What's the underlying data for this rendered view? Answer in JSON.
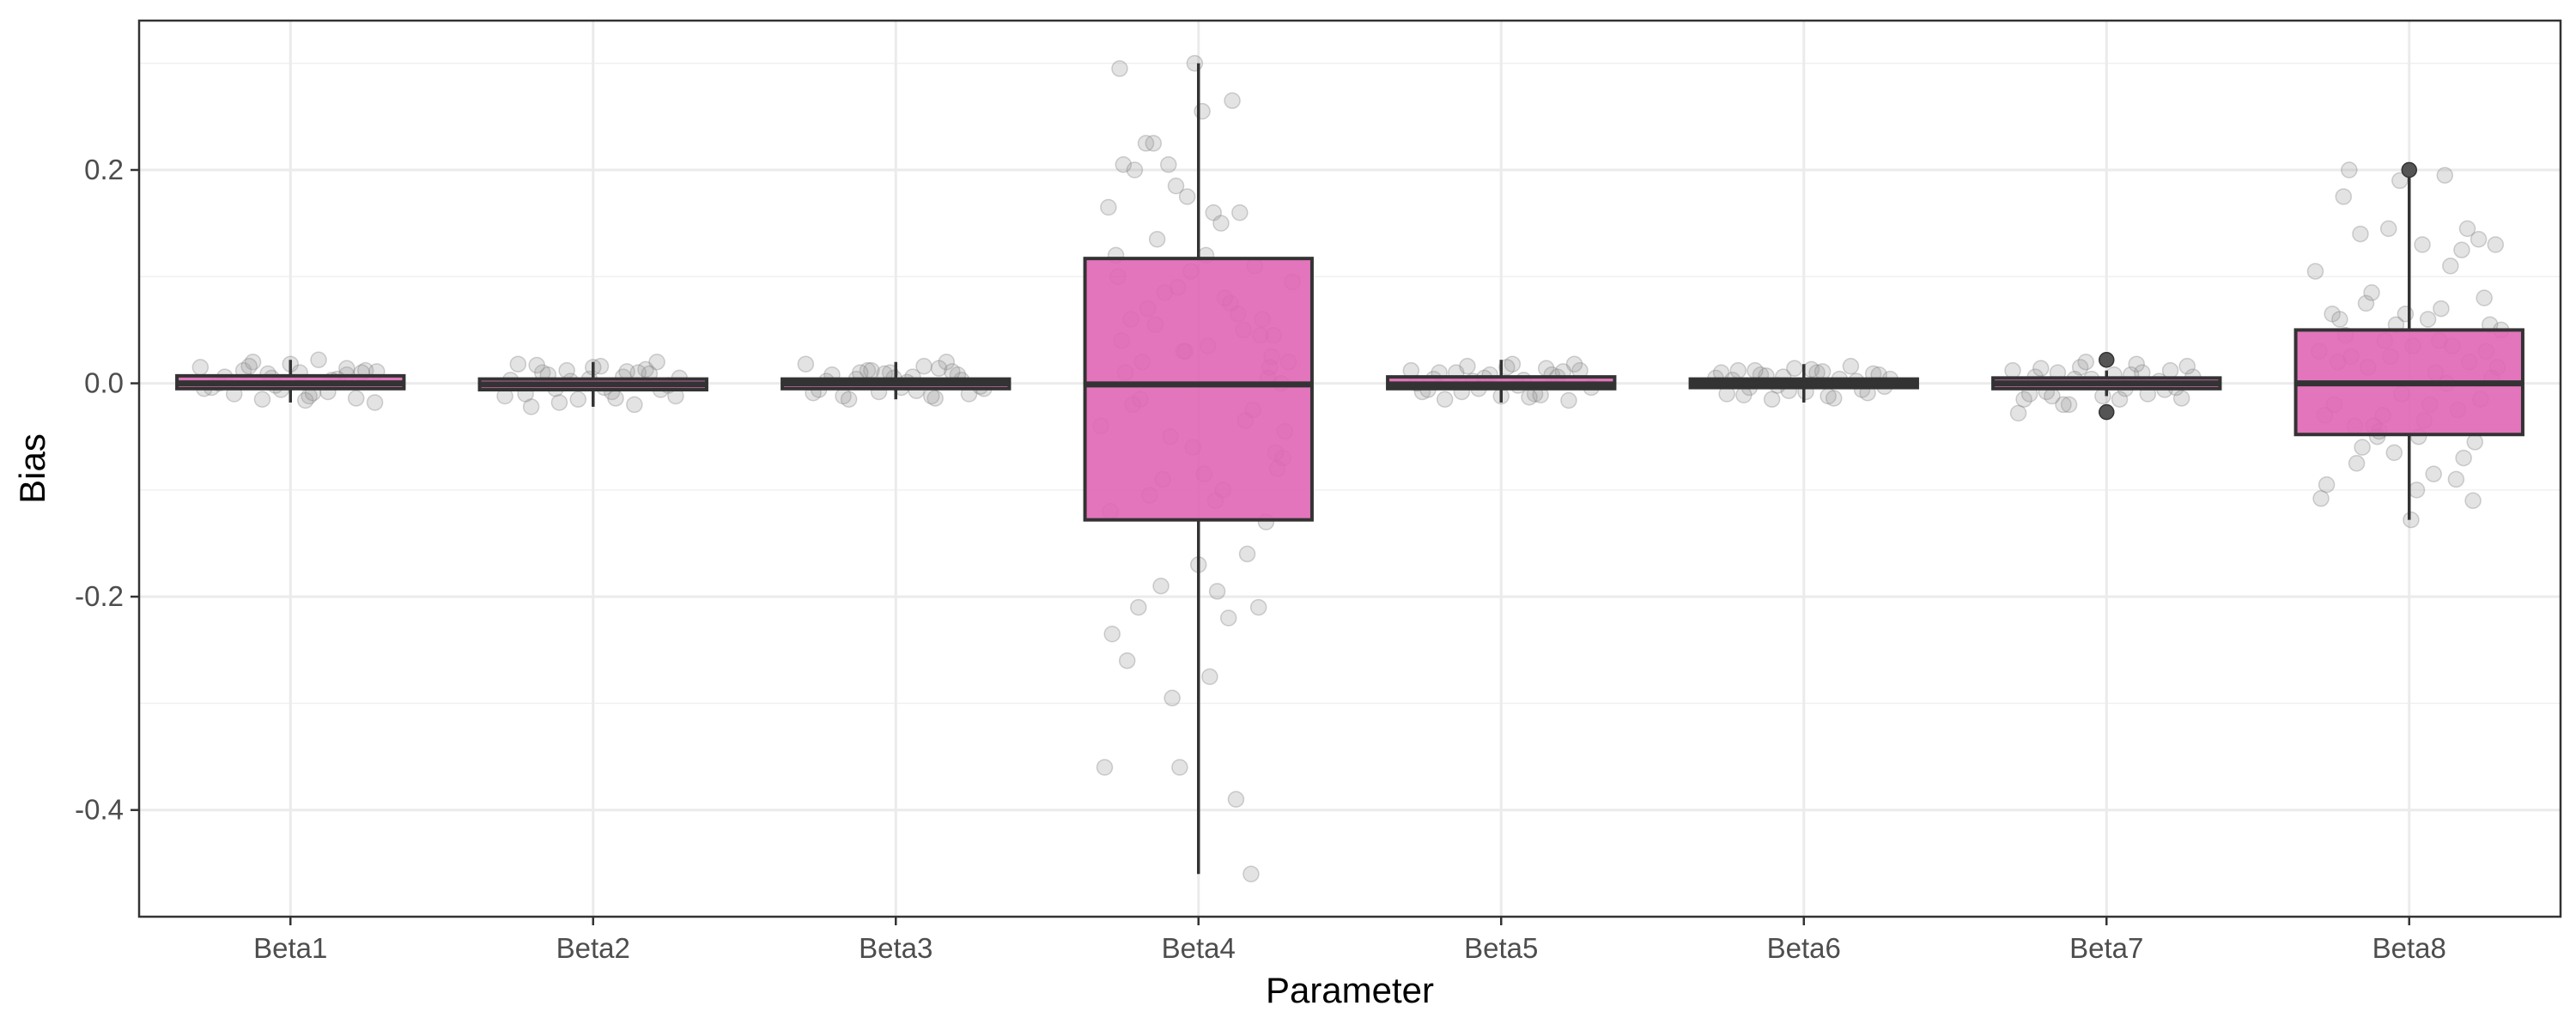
{
  "chart_data": {
    "type": "boxplot",
    "title": "",
    "xlabel": "Parameter",
    "ylabel": "Bias",
    "ylim": [
      -0.5,
      0.34
    ],
    "yticks": [
      {
        "value": -0.4,
        "label": "-0.4"
      },
      {
        "value": -0.2,
        "label": "-0.2"
      },
      {
        "value": 0.0,
        "label": "0.0"
      },
      {
        "value": 0.2,
        "label": "0.2"
      }
    ],
    "grid": true,
    "legend": "none",
    "colors": {
      "box_fill": "#e066b5",
      "box_line": "#333333",
      "point": "#999999"
    },
    "categories": [
      "Beta1",
      "Beta2",
      "Beta3",
      "Beta4",
      "Beta5",
      "Beta6",
      "Beta7",
      "Beta8"
    ],
    "boxes": [
      {
        "category": "Beta1",
        "min": -0.018,
        "q1": -0.005,
        "median": 0.0,
        "q3": 0.007,
        "max": 0.022,
        "outliers": []
      },
      {
        "category": "Beta2",
        "min": -0.022,
        "q1": -0.006,
        "median": -0.001,
        "q3": 0.004,
        "max": 0.02,
        "outliers": []
      },
      {
        "category": "Beta3",
        "min": -0.015,
        "q1": -0.005,
        "median": 0.0,
        "q3": 0.004,
        "max": 0.02,
        "outliers": []
      },
      {
        "category": "Beta4",
        "min": -0.46,
        "q1": -0.128,
        "median": -0.001,
        "q3": 0.117,
        "max": 0.3,
        "outliers": []
      },
      {
        "category": "Beta5",
        "min": -0.018,
        "q1": -0.005,
        "median": -0.001,
        "q3": 0.006,
        "max": 0.022,
        "outliers": []
      },
      {
        "category": "Beta6",
        "min": -0.018,
        "q1": -0.004,
        "median": 0.0,
        "q3": 0.004,
        "max": 0.018,
        "outliers": []
      },
      {
        "category": "Beta7",
        "min": -0.012,
        "q1": -0.005,
        "median": 0.0,
        "q3": 0.005,
        "max": 0.012,
        "outliers": [
          0.022,
          -0.027
        ]
      },
      {
        "category": "Beta8",
        "min": -0.128,
        "q1": -0.048,
        "median": 0.0,
        "q3": 0.05,
        "max": 0.195,
        "outliers": [
          0.2
        ]
      }
    ],
    "jitter_points": [
      {
        "category": "Beta1",
        "offsets": [
          -0.48,
          -0.42,
          -0.35,
          -0.3,
          -0.25,
          -0.2,
          -0.15,
          -0.1,
          -0.05,
          0.0,
          0.05,
          0.1,
          0.15,
          0.2,
          0.25,
          0.3,
          0.35,
          0.4,
          0.45,
          -0.38,
          -0.22,
          -0.08,
          0.08,
          0.22,
          0.38,
          -0.46,
          0.46,
          -0.12,
          0.12,
          0.3
        ],
        "values": [
          0.015,
          -0.004,
          0.006,
          -0.01,
          0.012,
          0.02,
          -0.015,
          0.005,
          -0.006,
          0.018,
          0.01,
          -0.012,
          0.022,
          -0.008,
          0.004,
          0.008,
          -0.014,
          0.012,
          -0.018,
          0.0,
          0.016,
          -0.002,
          -0.016,
          0.003,
          0.01,
          -0.005,
          0.011,
          0.009,
          -0.009,
          0.014
        ]
      },
      {
        "category": "Beta2",
        "offsets": [
          -0.47,
          -0.4,
          -0.33,
          -0.27,
          -0.2,
          -0.14,
          -0.08,
          -0.02,
          0.04,
          0.1,
          0.16,
          0.22,
          0.28,
          0.34,
          0.4,
          0.46,
          -0.36,
          -0.24,
          -0.12,
          0.0,
          0.12,
          0.24,
          0.36,
          -0.44,
          0.44,
          -0.3,
          0.3,
          -0.18,
          0.18,
          0.06
        ],
        "values": [
          -0.012,
          0.018,
          -0.022,
          0.01,
          -0.005,
          0.012,
          -0.015,
          0.004,
          0.016,
          -0.008,
          0.006,
          -0.02,
          0.013,
          0.02,
          -0.002,
          0.005,
          -0.01,
          0.008,
          0.002,
          0.015,
          -0.014,
          0.01,
          -0.006,
          0.003,
          -0.012,
          0.017,
          0.009,
          -0.018,
          0.011,
          -0.004
        ]
      },
      {
        "category": "Beta3",
        "offsets": [
          -0.48,
          -0.41,
          -0.34,
          -0.28,
          -0.21,
          -0.15,
          -0.09,
          -0.03,
          0.03,
          0.09,
          0.15,
          0.21,
          0.27,
          0.33,
          0.39,
          0.45,
          -0.37,
          -0.25,
          -0.13,
          -0.01,
          0.11,
          0.23,
          0.35,
          -0.44,
          0.47,
          -0.19,
          0.19,
          -0.06,
          0.06,
          0.3
        ],
        "values": [
          0.018,
          -0.006,
          0.008,
          -0.012,
          0.004,
          0.012,
          -0.008,
          0.01,
          -0.004,
          0.006,
          0.016,
          -0.014,
          0.02,
          0.008,
          -0.01,
          -0.003,
          0.002,
          -0.015,
          0.012,
          0.005,
          -0.007,
          0.014,
          0.003,
          -0.009,
          -0.005,
          0.01,
          -0.012,
          0.009,
          0.001,
          0.011
        ]
      },
      {
        "category": "Beta4",
        "offsets": [
          -0.52,
          -0.5,
          -0.48,
          -0.46,
          -0.44,
          -0.42,
          -0.4,
          -0.38,
          -0.36,
          -0.34,
          -0.32,
          -0.3,
          -0.28,
          -0.26,
          -0.24,
          -0.22,
          -0.2,
          -0.18,
          -0.16,
          -0.14,
          -0.12,
          -0.1,
          -0.08,
          -0.06,
          -0.04,
          -0.02,
          0.0,
          0.02,
          0.04,
          0.06,
          0.08,
          0.1,
          0.12,
          0.14,
          0.16,
          0.18,
          0.2,
          0.22,
          0.24,
          0.26,
          0.28,
          0.3,
          0.32,
          0.34,
          0.36,
          0.38,
          0.4,
          0.42,
          0.44,
          0.46,
          0.48,
          0.5,
          -0.47,
          -0.41,
          -0.35,
          -0.27,
          -0.19,
          -0.11,
          -0.03,
          0.05,
          0.13,
          0.21,
          0.29,
          0.37,
          0.45,
          -0.43,
          -0.31,
          -0.23,
          -0.15,
          -0.07,
          0.09,
          0.17,
          0.25,
          0.33,
          0.41,
          -0.39,
          0.03,
          0.39
        ],
        "values": [
          -0.04,
          -0.36,
          0.165,
          -0.235,
          0.12,
          0.295,
          0.205,
          -0.26,
          0.06,
          0.2,
          -0.21,
          0.02,
          0.225,
          -0.105,
          0.225,
          0.135,
          -0.19,
          0.085,
          0.205,
          -0.295,
          0.185,
          -0.36,
          0.03,
          0.175,
          0.105,
          0.3,
          -0.17,
          0.255,
          0.12,
          -0.275,
          0.16,
          -0.195,
          0.15,
          0.08,
          -0.22,
          0.265,
          -0.39,
          0.16,
          0.05,
          -0.16,
          -0.46,
          0.11,
          -0.21,
          0.06,
          -0.13,
          0.015,
          0.045,
          -0.08,
          0.0,
          -0.045,
          0.02,
          0.095,
          -0.12,
          0.04,
          -0.02,
          0.07,
          -0.09,
          0.09,
          -0.06,
          0.035,
          -0.1,
          0.065,
          -0.025,
          0.005,
          -0.07,
          0.1,
          -0.015,
          0.055,
          -0.05,
          0.03,
          -0.11,
          0.075,
          -0.035,
          0.045,
          -0.065,
          0.01,
          -0.085,
          0.025
        ]
      },
      {
        "category": "Beta5",
        "offsets": [
          -0.48,
          -0.42,
          -0.36,
          -0.3,
          -0.24,
          -0.18,
          -0.12,
          -0.06,
          0.0,
          0.06,
          0.12,
          0.18,
          0.24,
          0.3,
          0.36,
          0.42,
          0.48,
          -0.45,
          -0.33,
          -0.21,
          -0.09,
          0.03,
          0.15,
          0.27,
          0.39,
          -0.39,
          0.09,
          0.33,
          -0.15,
          0.21
        ],
        "values": [
          0.012,
          -0.008,
          0.004,
          -0.015,
          0.01,
          0.016,
          -0.005,
          0.008,
          -0.012,
          0.018,
          0.003,
          -0.01,
          0.014,
          0.006,
          -0.016,
          0.012,
          -0.004,
          0.0,
          0.01,
          -0.008,
          0.005,
          0.015,
          -0.013,
          0.008,
          0.018,
          -0.006,
          -0.002,
          0.011,
          0.002,
          -0.011
        ]
      },
      {
        "category": "Beta6",
        "offsets": [
          -0.47,
          -0.41,
          -0.35,
          -0.29,
          -0.23,
          -0.17,
          -0.11,
          -0.05,
          0.01,
          0.07,
          0.13,
          0.19,
          0.25,
          0.31,
          0.37,
          0.43,
          -0.44,
          -0.32,
          -0.2,
          -0.08,
          0.04,
          0.16,
          0.28,
          0.4,
          -0.38,
          -0.14,
          0.1,
          0.34,
          0.46,
          -0.26
        ],
        "values": [
          0.005,
          -0.01,
          0.012,
          -0.004,
          0.008,
          -0.015,
          0.006,
          0.014,
          -0.008,
          0.01,
          -0.012,
          0.004,
          0.016,
          -0.006,
          0.009,
          -0.003,
          0.01,
          -0.011,
          0.007,
          -0.007,
          0.013,
          -0.014,
          0.002,
          0.008,
          0.003,
          -0.002,
          0.011,
          -0.009,
          0.004,
          0.012
        ]
      },
      {
        "category": "Beta7",
        "offsets": [
          -0.5,
          -0.44,
          -0.38,
          -0.32,
          -0.26,
          -0.2,
          -0.14,
          -0.08,
          -0.02,
          0.04,
          0.1,
          0.16,
          0.22,
          0.28,
          0.34,
          0.4,
          0.46,
          -0.47,
          -0.35,
          -0.23,
          -0.11,
          0.07,
          0.19,
          0.31,
          0.43,
          -0.41,
          -0.17,
          0.13,
          0.37,
          -0.29
        ],
        "values": [
          0.012,
          -0.015,
          0.006,
          -0.008,
          0.01,
          -0.02,
          0.015,
          0.004,
          -0.012,
          0.008,
          -0.005,
          0.018,
          -0.01,
          0.002,
          0.012,
          -0.014,
          0.006,
          -0.028,
          0.014,
          -0.02,
          0.02,
          -0.015,
          0.01,
          -0.006,
          0.016,
          -0.01,
          0.004,
          0.008,
          -0.004,
          -0.012
        ]
      },
      {
        "category": "Beta8",
        "offsets": [
          -0.5,
          -0.47,
          -0.44,
          -0.41,
          -0.38,
          -0.35,
          -0.32,
          -0.29,
          -0.26,
          -0.23,
          -0.2,
          -0.17,
          -0.14,
          -0.11,
          -0.08,
          -0.05,
          -0.02,
          0.01,
          0.04,
          0.07,
          0.1,
          0.13,
          0.16,
          0.19,
          0.22,
          0.25,
          0.28,
          0.31,
          0.34,
          0.37,
          0.4,
          0.43,
          0.46,
          0.49,
          -0.48,
          -0.4,
          -0.34,
          -0.28,
          -0.22,
          -0.16,
          -0.1,
          -0.04,
          0.02,
          0.08,
          0.14,
          0.2,
          0.26,
          0.32,
          0.38,
          0.44,
          -0.45,
          -0.37,
          -0.25,
          -0.13,
          0.05,
          0.17,
          0.29,
          0.41,
          -0.31,
          -0.19,
          -0.07,
          0.11,
          0.23,
          0.35,
          0.47
        ],
        "values": [
          0.105,
          -0.108,
          -0.095,
          0.065,
          0.02,
          0.175,
          0.2,
          -0.04,
          0.14,
          0.075,
          0.085,
          -0.05,
          -0.03,
          0.145,
          -0.065,
          0.19,
          0.065,
          -0.128,
          -0.1,
          0.13,
          0.06,
          -0.085,
          0.04,
          0.195,
          0.11,
          -0.09,
          0.125,
          0.145,
          -0.11,
          0.135,
          0.08,
          0.055,
          0.13,
          0.05,
          0.03,
          -0.02,
          0.045,
          -0.075,
          0.015,
          -0.045,
          0.025,
          -0.01,
          0.035,
          -0.035,
          0.01,
          0.0,
          -0.025,
          0.02,
          -0.015,
          0.005,
          -0.03,
          0.06,
          -0.06,
          0.04,
          -0.05,
          0.07,
          -0.07,
          0.03,
          0.025,
          -0.04,
          0.055,
          -0.02,
          0.035,
          -0.055,
          0.015
        ]
      }
    ]
  }
}
